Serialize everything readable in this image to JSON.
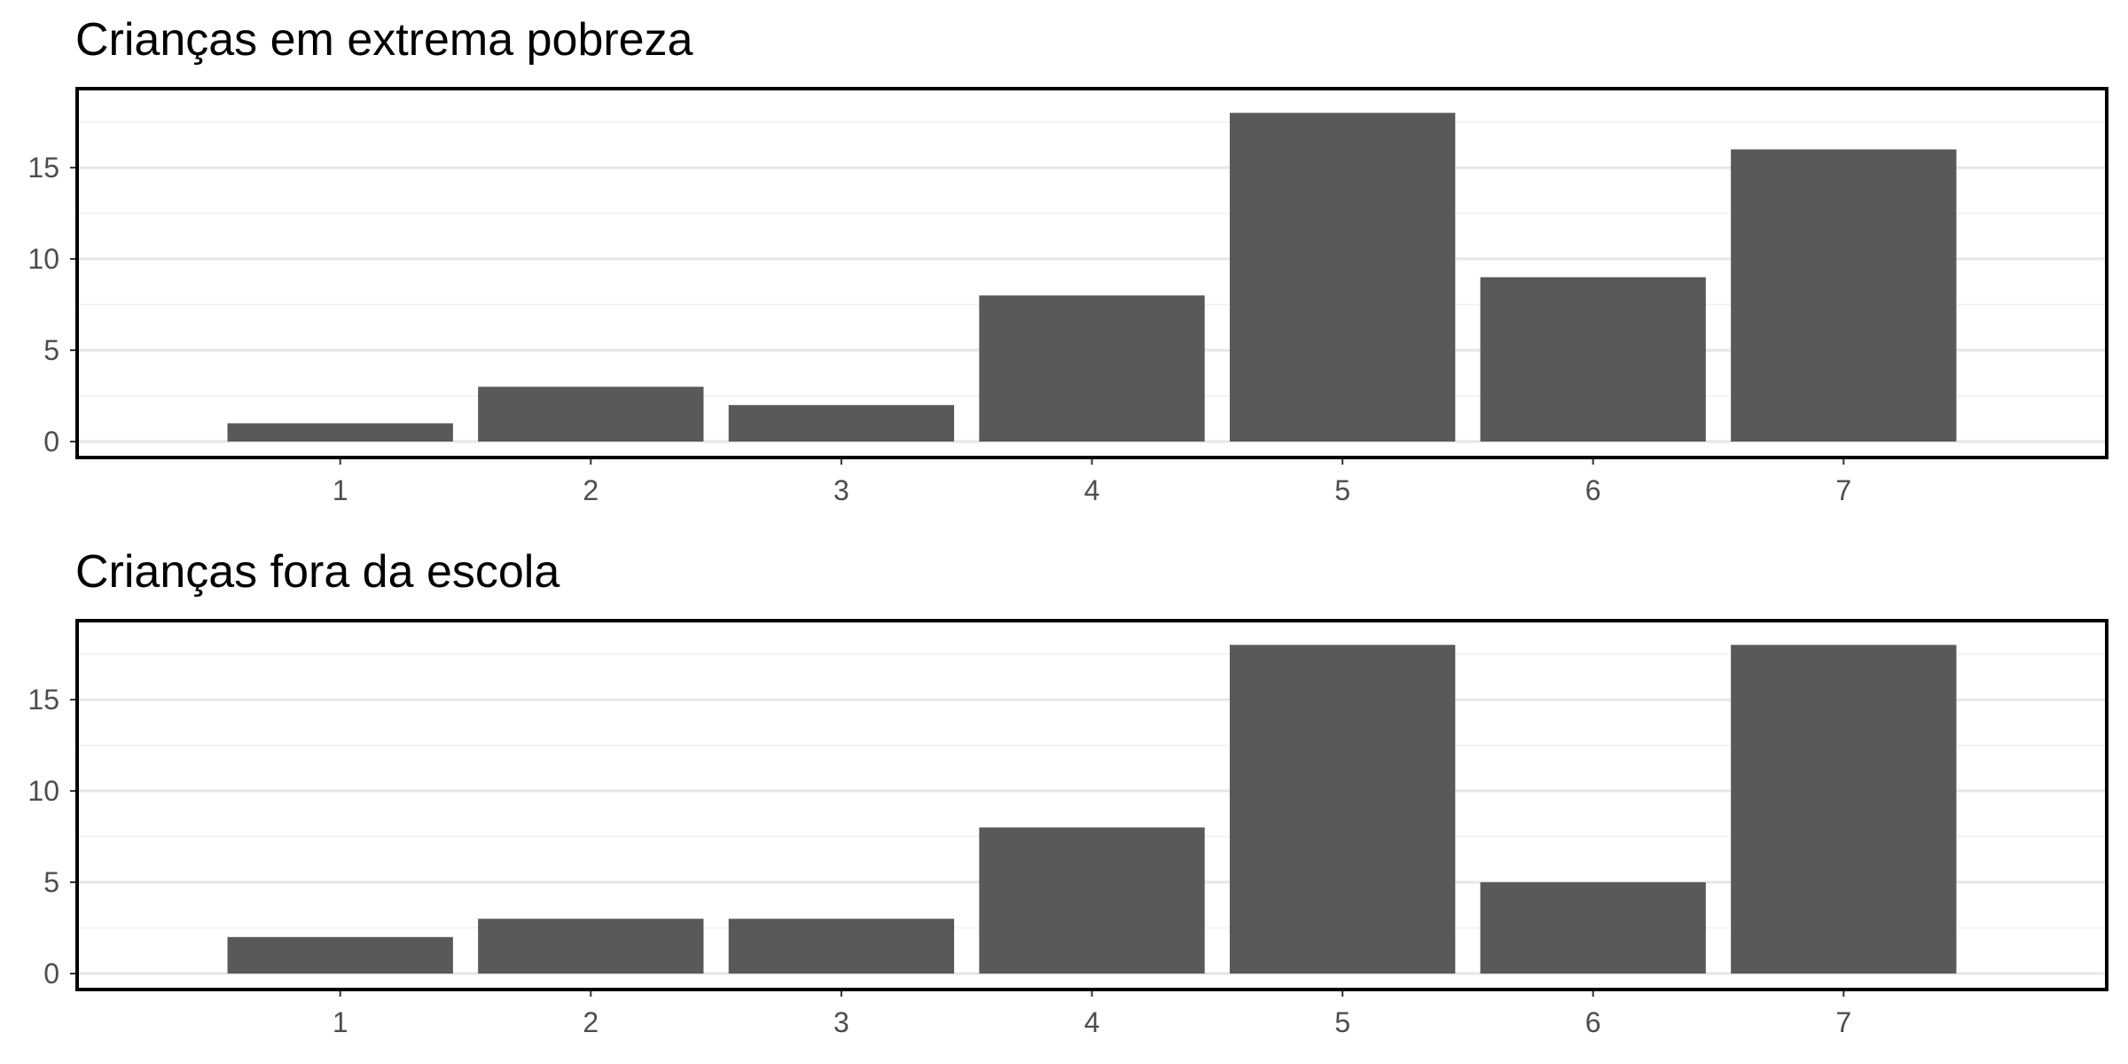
{
  "chart_data": [
    {
      "type": "bar",
      "title": "Crianças em extrema pobreza",
      "categories": [
        "1",
        "2",
        "3",
        "4",
        "5",
        "6",
        "7"
      ],
      "values": [
        1,
        3,
        2,
        8,
        18,
        9,
        16
      ],
      "ylim": [
        0,
        18.5
      ],
      "yticks": [
        0,
        5,
        10,
        15
      ],
      "xlabel": "",
      "ylabel": "",
      "bar_color": "#595959",
      "grid": true
    },
    {
      "type": "bar",
      "title": "Crianças fora da escola",
      "categories": [
        "1",
        "2",
        "3",
        "4",
        "5",
        "6",
        "7"
      ],
      "values": [
        2,
        3,
        3,
        8,
        18,
        5,
        18
      ],
      "ylim": [
        0,
        18.5
      ],
      "yticks": [
        0,
        5,
        10,
        15
      ],
      "xlabel": "",
      "ylabel": "",
      "bar_color": "#595959",
      "grid": true
    }
  ]
}
